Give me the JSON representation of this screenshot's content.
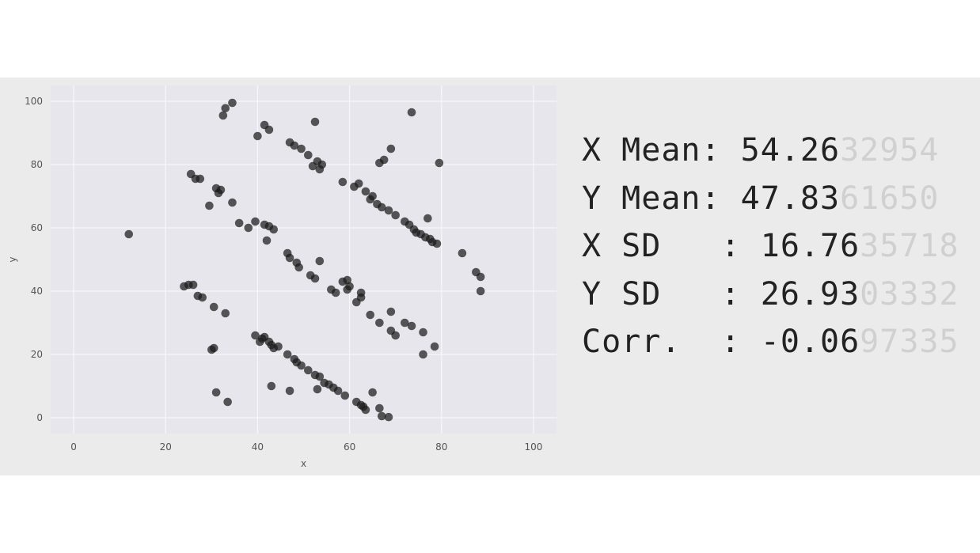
{
  "colors": {
    "plot_background": "#e6e6ec",
    "grid": "#f7f7fa",
    "point": "#1a1a1a",
    "panel_background": "#ebebeb",
    "text": "#222222",
    "faded_text": "#d0d0d0"
  },
  "stats": [
    {
      "label": "X Mean: ",
      "value_main": "54.26",
      "value_faded": "32954"
    },
    {
      "label": "Y Mean: ",
      "value_main": "47.83",
      "value_faded": "61650"
    },
    {
      "label": "X SD   : ",
      "value_main": "16.76",
      "value_faded": "35718"
    },
    {
      "label": "Y SD   : ",
      "value_main": "26.93",
      "value_faded": "03332"
    },
    {
      "label": "Corr.  : ",
      "value_main": "-0.06",
      "value_faded": "97335"
    }
  ],
  "chart_data": {
    "type": "scatter",
    "title": "",
    "xlabel": "x",
    "ylabel": "y",
    "xlim": [
      -5,
      105
    ],
    "ylim": [
      -5,
      105
    ],
    "xticks": [
      0,
      20,
      40,
      60,
      80,
      100
    ],
    "yticks": [
      0,
      20,
      40,
      60,
      80,
      100
    ],
    "grid": true,
    "points": [
      [
        12.0,
        58.0
      ],
      [
        32.5,
        95.5
      ],
      [
        33.0,
        97.8
      ],
      [
        34.5,
        99.5
      ],
      [
        40.0,
        89.0
      ],
      [
        41.5,
        92.5
      ],
      [
        42.5,
        91.0
      ],
      [
        52.5,
        93.5
      ],
      [
        47.0,
        87.0
      ],
      [
        48.0,
        86.0
      ],
      [
        49.5,
        85.0
      ],
      [
        51.0,
        83.0
      ],
      [
        52.0,
        79.5
      ],
      [
        53.0,
        81.0
      ],
      [
        54.0,
        80.0
      ],
      [
        53.5,
        78.5
      ],
      [
        58.5,
        74.5
      ],
      [
        61.0,
        73.0
      ],
      [
        62.0,
        74.0
      ],
      [
        63.5,
        71.5
      ],
      [
        64.5,
        69.0
      ],
      [
        65.0,
        70.0
      ],
      [
        66.0,
        67.5
      ],
      [
        67.0,
        66.5
      ],
      [
        68.5,
        65.5
      ],
      [
        70.0,
        64.0
      ],
      [
        72.0,
        62.0
      ],
      [
        73.0,
        61.0
      ],
      [
        74.0,
        59.5
      ],
      [
        74.5,
        58.5
      ],
      [
        75.5,
        58.0
      ],
      [
        76.5,
        57.0
      ],
      [
        77.5,
        56.5
      ],
      [
        78.0,
        55.5
      ],
      [
        79.0,
        55.0
      ],
      [
        77.0,
        63.0
      ],
      [
        73.5,
        96.5
      ],
      [
        69.0,
        85.0
      ],
      [
        67.5,
        81.5
      ],
      [
        66.5,
        80.5
      ],
      [
        79.5,
        80.5
      ],
      [
        84.5,
        52.0
      ],
      [
        87.5,
        46.0
      ],
      [
        88.5,
        44.5
      ],
      [
        88.5,
        40.0
      ],
      [
        25.5,
        77.0
      ],
      [
        26.5,
        75.5
      ],
      [
        27.5,
        75.5
      ],
      [
        31.0,
        72.5
      ],
      [
        31.5,
        71.0
      ],
      [
        32.0,
        72.0
      ],
      [
        29.5,
        67.0
      ],
      [
        34.5,
        68.0
      ],
      [
        36.0,
        61.5
      ],
      [
        38.0,
        60.0
      ],
      [
        39.5,
        62.0
      ],
      [
        41.5,
        61.0
      ],
      [
        42.5,
        60.5
      ],
      [
        43.5,
        59.5
      ],
      [
        42.0,
        56.0
      ],
      [
        46.5,
        52.0
      ],
      [
        47.0,
        50.5
      ],
      [
        48.5,
        49.0
      ],
      [
        49.0,
        47.5
      ],
      [
        51.5,
        45.0
      ],
      [
        52.5,
        44.0
      ],
      [
        53.5,
        49.5
      ],
      [
        56.0,
        40.5
      ],
      [
        57.0,
        39.5
      ],
      [
        58.5,
        43.0
      ],
      [
        59.5,
        43.5
      ],
      [
        60.0,
        41.5
      ],
      [
        59.5,
        40.5
      ],
      [
        61.5,
        36.5
      ],
      [
        62.5,
        38.0
      ],
      [
        62.5,
        39.5
      ],
      [
        64.5,
        32.5
      ],
      [
        66.5,
        30.0
      ],
      [
        69.0,
        33.5
      ],
      [
        69.0,
        27.5
      ],
      [
        70.0,
        26.0
      ],
      [
        72.0,
        30.0
      ],
      [
        73.5,
        29.0
      ],
      [
        76.0,
        27.0
      ],
      [
        76.0,
        20.0
      ],
      [
        78.5,
        22.5
      ],
      [
        24.0,
        41.5
      ],
      [
        25.0,
        42.0
      ],
      [
        26.0,
        42.0
      ],
      [
        27.0,
        38.5
      ],
      [
        28.0,
        38.0
      ],
      [
        30.5,
        35.0
      ],
      [
        33.0,
        33.0
      ],
      [
        30.0,
        21.5
      ],
      [
        30.5,
        22.0
      ],
      [
        31.0,
        8.0
      ],
      [
        33.5,
        5.0
      ],
      [
        39.5,
        26.0
      ],
      [
        40.5,
        24.0
      ],
      [
        41.0,
        25.0
      ],
      [
        41.5,
        25.5
      ],
      [
        42.5,
        24.0
      ],
      [
        43.0,
        23.0
      ],
      [
        43.5,
        22.0
      ],
      [
        44.5,
        22.5
      ],
      [
        46.5,
        20.0
      ],
      [
        48.0,
        18.5
      ],
      [
        48.5,
        17.5
      ],
      [
        49.5,
        16.5
      ],
      [
        51.0,
        15.0
      ],
      [
        52.5,
        13.5
      ],
      [
        53.5,
        13.0
      ],
      [
        54.5,
        11.0
      ],
      [
        55.5,
        10.5
      ],
      [
        56.5,
        9.5
      ],
      [
        57.5,
        8.5
      ],
      [
        59.0,
        7.0
      ],
      [
        61.5,
        5.0
      ],
      [
        62.5,
        4.0
      ],
      [
        63.0,
        3.5
      ],
      [
        63.5,
        2.5
      ],
      [
        65.0,
        8.0
      ],
      [
        66.5,
        3.0
      ],
      [
        67.0,
        0.5
      ],
      [
        68.5,
        0.2
      ],
      [
        43.0,
        10.0
      ],
      [
        47.0,
        8.5
      ],
      [
        53.0,
        9.0
      ]
    ]
  }
}
